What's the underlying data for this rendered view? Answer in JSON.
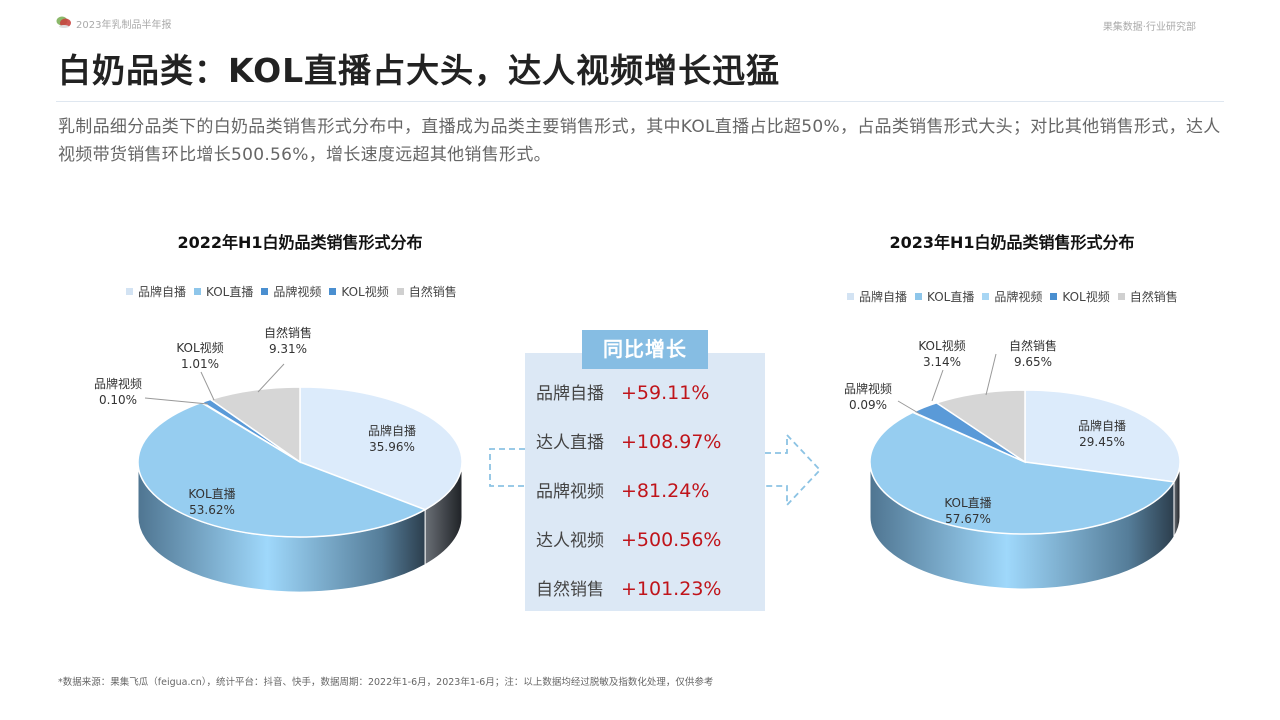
{
  "header": {
    "report_label": "2023年乳制品半年报",
    "dept_label": "果集数据·行业研究部",
    "logo_icon": "brand-logo-icon"
  },
  "page": {
    "title": "白奶品类：KOL直播占大头，达人视频增长迅猛",
    "summary": "乳制品细分品类下的白奶品类销售形式分布中，直播成为品类主要销售形式，其中KOL直播占比超50%，占品类销售形式大头；对比其他销售形式，达人视频带货销售环比增长500.56%，增长速度远超其他销售形式。"
  },
  "growth": {
    "header": "同比增长",
    "rows": [
      {
        "name": "品牌自播",
        "value": "+59.11%"
      },
      {
        "name": "达人直播",
        "value": "+108.97%"
      },
      {
        "name": "品牌视频",
        "value": "+81.24%"
      },
      {
        "name": "达人视频",
        "value": "+500.56%"
      },
      {
        "name": "自然销售",
        "value": "+101.23%"
      }
    ],
    "value_color": "#c0141a",
    "box_color": "#dce8f5",
    "header_color": "#86bde3"
  },
  "footnote": "*数据来源：果集飞瓜（feigua.cn），统计平台：抖音、快手，数据周期：2022年1-6月，2023年1-6月；注：以上数据均经过脱敏及指数化处理，仅供参考",
  "chart_data": [
    {
      "type": "pie",
      "title": "2022年H1白奶品类销售形式分布",
      "legend_position": "top",
      "categories": [
        "品牌自播",
        "KOL直播",
        "品牌视频",
        "KOL视频",
        "自然销售"
      ],
      "values": [
        35.96,
        53.62,
        0.1,
        1.01,
        9.31
      ],
      "labels": [
        "35.96%",
        "53.62%",
        "0.10%",
        "1.01%",
        "9.31%"
      ],
      "colors": [
        "#dcebfb",
        "#96cdf0",
        "#4a8fd0",
        "#5a9ad8",
        "#d6d6d6"
      ],
      "legend_colors": [
        "#d3e3f3",
        "#8ec6ea",
        "#4a8fd0",
        "#4a8fd0",
        "#d0d0d0"
      ]
    },
    {
      "type": "pie",
      "title": "2023年H1白奶品类销售形式分布",
      "legend_position": "top",
      "categories": [
        "品牌自播",
        "KOL直播",
        "品牌视频",
        "KOL视频",
        "自然销售"
      ],
      "values": [
        29.45,
        57.67,
        0.09,
        3.14,
        9.65
      ],
      "labels": [
        "29.45%",
        "57.67%",
        "0.09%",
        "3.14%",
        "9.65%"
      ],
      "colors": [
        "#dcebfb",
        "#96cdf0",
        "#a8d6f4",
        "#5a9ad8",
        "#d6d6d6"
      ],
      "legend_colors": [
        "#d3e3f3",
        "#8ec6ea",
        "#a8d6f4",
        "#4a8fd0",
        "#d0d0d0"
      ]
    }
  ]
}
